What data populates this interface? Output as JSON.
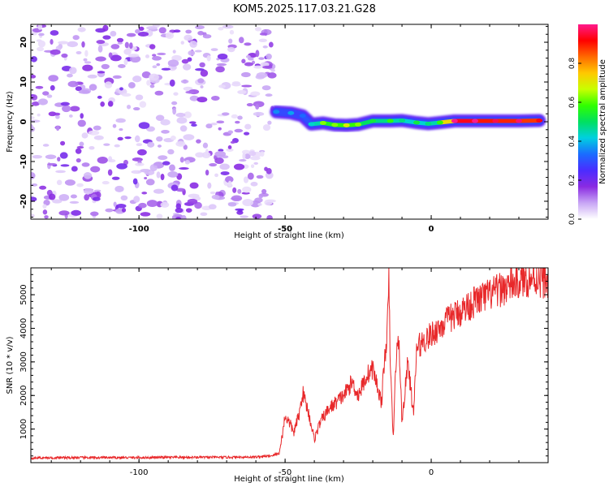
{
  "title": "KOM5.2025.117.03.21.G28",
  "colors": {
    "snr_line": "#e8282a",
    "frame": "#000000",
    "background": "#ffffff",
    "ridge_low": "#2f6bff",
    "ridge_high": "#ff1a1a",
    "noise": "#7a2ce0"
  },
  "chart_data": [
    {
      "type": "heatmap",
      "name": "spectrogram",
      "xlabel": "Height of straight line (km)",
      "ylabel": "Frequency (Hz)",
      "xlim": [
        -137,
        40
      ],
      "ylim": [
        -24.5,
        24.5
      ],
      "xticks": [
        -100,
        -50,
        0
      ],
      "xtick_labels": [
        "-100",
        "-50",
        "0"
      ],
      "yticks": [
        20,
        10,
        0,
        -10,
        -20
      ],
      "ytick_labels": [
        "20",
        "10",
        "0",
        "-10",
        "-20"
      ],
      "grid": false,
      "noise_region_x": [
        -137,
        -54
      ],
      "ridge": {
        "description_x": [
          -54,
          40
        ],
        "points": [
          [
            -53,
            2.5,
            0.28
          ],
          [
            -48,
            2.2,
            0.3
          ],
          [
            -44,
            1.5,
            0.25
          ],
          [
            -41,
            -0.6,
            0.35
          ],
          [
            -37,
            -0.3,
            0.55
          ],
          [
            -33,
            -0.8,
            0.55
          ],
          [
            -29,
            -0.9,
            0.62
          ],
          [
            -25,
            -0.7,
            0.55
          ],
          [
            -20,
            0.2,
            0.45
          ],
          [
            -14,
            0.2,
            0.5
          ],
          [
            -10,
            0.3,
            0.4
          ],
          [
            -5,
            -0.2,
            0.45
          ],
          [
            -1,
            -0.5,
            0.4
          ],
          [
            3,
            -0.2,
            0.5
          ],
          [
            8,
            0.2,
            0.95
          ],
          [
            15,
            0.2,
            0.92
          ],
          [
            22,
            0.2,
            0.88
          ],
          [
            30,
            0.2,
            0.9
          ],
          [
            37,
            0.3,
            0.85
          ]
        ]
      },
      "colorbar": {
        "label": "Normalized spectral amplitude",
        "range": [
          0,
          1
        ],
        "ticks": [
          0.0,
          0.2,
          0.4,
          0.6,
          0.8
        ],
        "tick_labels": [
          "0.0",
          "0.2",
          "0.4",
          "0.6",
          "0.8"
        ],
        "colormap": [
          "#ffffff",
          "#c8a6f5",
          "#8a2be2",
          "#4b2cff",
          "#1a6bff",
          "#00d0e0",
          "#00e060",
          "#30ff00",
          "#c8ff00",
          "#ffc800",
          "#ff6a00",
          "#ff0000",
          "#ff1a8c"
        ]
      }
    },
    {
      "type": "line",
      "name": "snr",
      "xlabel": "Height of straight line (km)",
      "ylabel": "SNR (10 * v/v)",
      "xlim": [
        -137,
        40
      ],
      "ylim": [
        0,
        5800
      ],
      "xticks": [
        -100,
        -50,
        0
      ],
      "xtick_labels": [
        "-100",
        "-50",
        "0"
      ],
      "yticks": [
        1000,
        2000,
        3000,
        4000,
        5000
      ],
      "ytick_labels": [
        "1000",
        "2000",
        "3000",
        "4000",
        "5000"
      ],
      "grid": false,
      "series": [
        {
          "x": [
            -137,
            -120,
            -100,
            -80,
            -70,
            -60,
            -55,
            -52,
            -51,
            -50,
            -48,
            -47,
            -45,
            -44,
            -42,
            -40,
            -38,
            -35,
            -30,
            -27,
            -25,
            -22,
            -20,
            -17,
            -16,
            -15,
            -14.5,
            -14,
            -13,
            -12,
            -11,
            -10,
            -8,
            -6,
            -5,
            -3,
            0,
            5,
            10,
            15,
            20,
            25,
            30,
            35,
            40
          ],
          "y": [
            140,
            150,
            150,
            160,
            160,
            170,
            200,
            280,
            800,
            1400,
            1100,
            900,
            1500,
            2100,
            1500,
            700,
            1200,
            1600,
            2000,
            2400,
            2000,
            2600,
            2800,
            1800,
            3000,
            4000,
            5400,
            3000,
            700,
            3200,
            3600,
            1200,
            3000,
            1400,
            3400,
            3600,
            3800,
            4200,
            4500,
            4800,
            5000,
            5200,
            5400,
            5500,
            5400
          ]
        }
      ]
    }
  ]
}
